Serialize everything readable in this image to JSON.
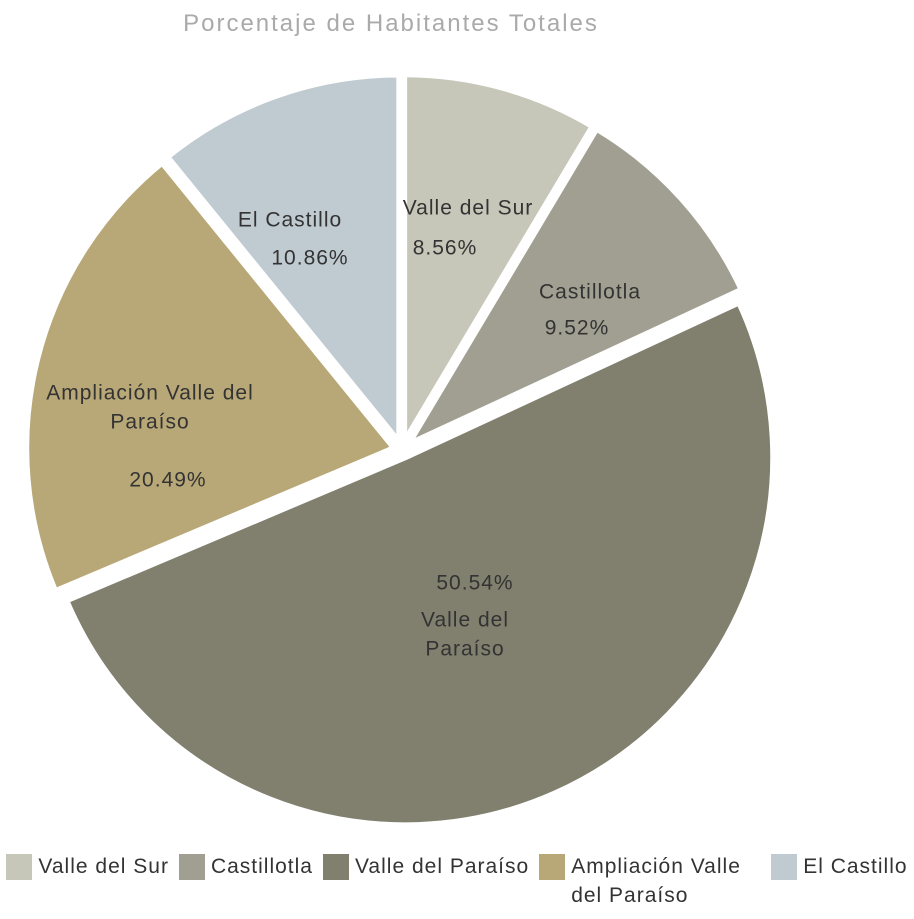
{
  "chart_data": {
    "type": "pie",
    "title": "Porcentaje de Habitantes Totales",
    "categories": [
      "Valle del Sur",
      "Castillotla",
      "Valle del Paraíso",
      "Ampliación Valle del Paraíso",
      "El Castillo"
    ],
    "values": [
      8.56,
      9.52,
      50.54,
      20.49,
      10.86
    ],
    "value_labels": [
      "8.56%",
      "9.52%",
      "50.54%",
      "20.49%",
      "10.86%"
    ],
    "colors": [
      "#c6c6b9",
      "#a19f91",
      "#817f6e",
      "#b8a877",
      "#c0cad1"
    ]
  }
}
